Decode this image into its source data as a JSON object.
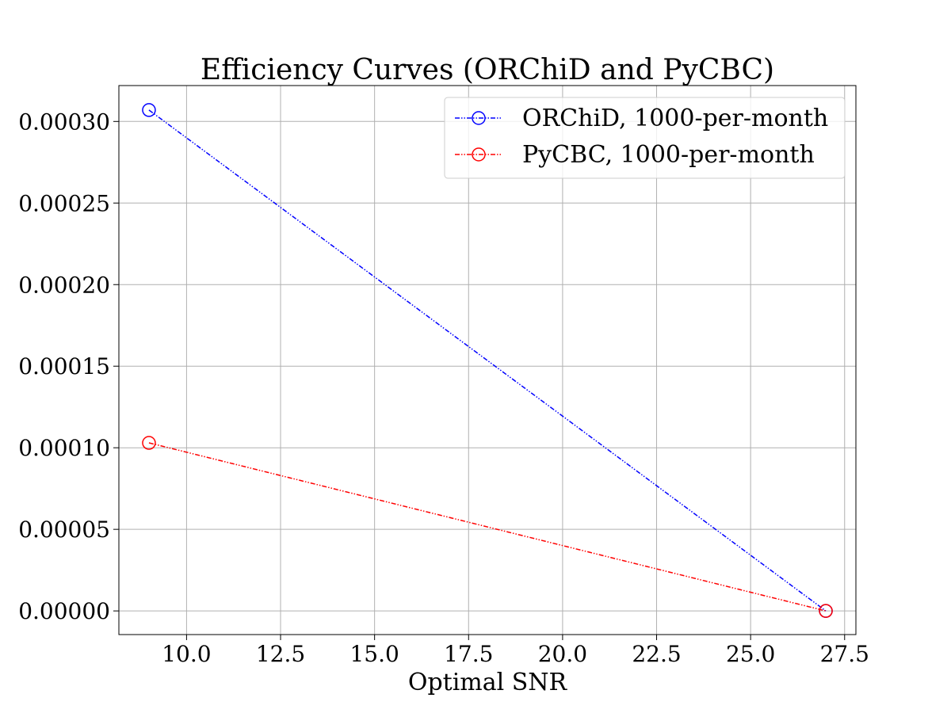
{
  "chart_data": {
    "type": "line",
    "title": "Efficiency Curves (ORChiD and PyCBC)",
    "xlabel": "Optimal SNR",
    "ylabel": "",
    "xlim": [
      8.2,
      27.8
    ],
    "ylim": [
      -1.45e-05,
      0.000322
    ],
    "x_ticks": [
      10.0,
      12.5,
      15.0,
      17.5,
      20.0,
      22.5,
      25.0,
      27.5
    ],
    "x_tick_labels": [
      "10.0",
      "12.5",
      "15.0",
      "17.5",
      "20.0",
      "22.5",
      "25.0",
      "27.5"
    ],
    "y_ticks": [
      0.0,
      5e-05,
      0.0001,
      0.00015,
      0.0002,
      0.00025,
      0.0003
    ],
    "y_tick_labels": [
      "0.00000",
      "0.00005",
      "0.00010",
      "0.00015",
      "0.00020",
      "0.00025",
      "0.00030"
    ],
    "grid": true,
    "legend_position": "top-right",
    "series": [
      {
        "name": "ORChiD, 1000-per-month",
        "color": "#0000ff",
        "marker": "open-circle",
        "linestyle": "dash-dot-dot",
        "x": [
          9.0,
          27.0
        ],
        "y": [
          0.000307,
          0.0
        ]
      },
      {
        "name": "PyCBC, 1000-per-month",
        "color": "#ff0000",
        "marker": "open-circle",
        "linestyle": "dash-dot-dot",
        "x": [
          9.0,
          27.0
        ],
        "y": [
          0.000103,
          0.0
        ]
      }
    ]
  }
}
